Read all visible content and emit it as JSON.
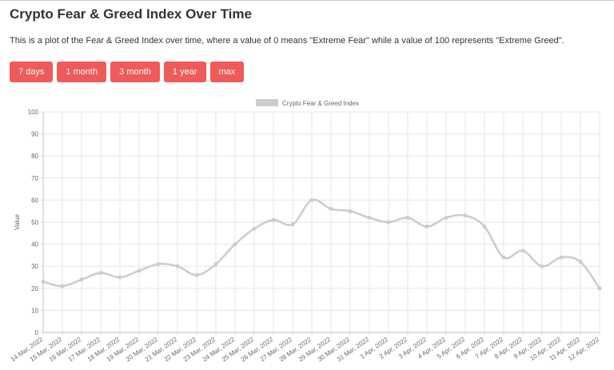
{
  "page": {
    "title": "Crypto Fear & Greed Index Over Time",
    "description": "This is a plot of the Fear & Greed Index over time, where a value of 0 means \"Extreme Fear\" while a value of 100 represents \"Extreme Greed\"."
  },
  "buttons": [
    {
      "label": "7 days"
    },
    {
      "label": "1 month"
    },
    {
      "label": "3 month"
    },
    {
      "label": "1 year"
    },
    {
      "label": "max"
    }
  ],
  "colors": {
    "button_bg": "#ef5a5a",
    "line": "#cccccc",
    "grid": "#e6e6e6"
  },
  "chart_data": {
    "type": "line",
    "legend": "Crypto Fear & Greed Index",
    "legend_position": "top",
    "ylabel": "Value",
    "xlabel": "",
    "ylim": [
      0,
      100
    ],
    "y_ticks": [
      0,
      10,
      20,
      30,
      40,
      50,
      60,
      70,
      80,
      90,
      100
    ],
    "grid": true,
    "categories": [
      "14 Mar, 2022",
      "15 Mar, 2022",
      "16 Mar, 2022",
      "17 Mar, 2022",
      "18 Mar, 2022",
      "19 Mar, 2022",
      "20 Mar, 2022",
      "21 Mar, 2022",
      "22 Mar, 2022",
      "23 Mar, 2022",
      "24 Mar, 2022",
      "25 Mar, 2022",
      "26 Mar, 2022",
      "27 Mar, 2022",
      "28 Mar, 2022",
      "29 Mar, 2022",
      "30 Mar, 2022",
      "31 Mar, 2022",
      "1 Apr, 2022",
      "2 Apr, 2022",
      "3 Apr, 2022",
      "4 Apr, 2022",
      "5 Apr, 2022",
      "6 Apr, 2022",
      "7 Apr, 2022",
      "8 Apr, 2022",
      "9 Apr, 2022",
      "10 Apr, 2022",
      "11 Apr, 2022",
      "12 Apr, 2022"
    ],
    "series": [
      {
        "name": "Crypto Fear & Greed Index",
        "values": [
          23,
          21,
          24,
          27,
          25,
          28,
          31,
          30,
          26,
          31,
          40,
          47,
          51,
          49,
          60,
          56,
          55,
          52,
          50,
          52,
          48,
          52,
          53,
          48,
          34,
          37,
          30,
          34,
          32,
          20
        ]
      }
    ]
  }
}
